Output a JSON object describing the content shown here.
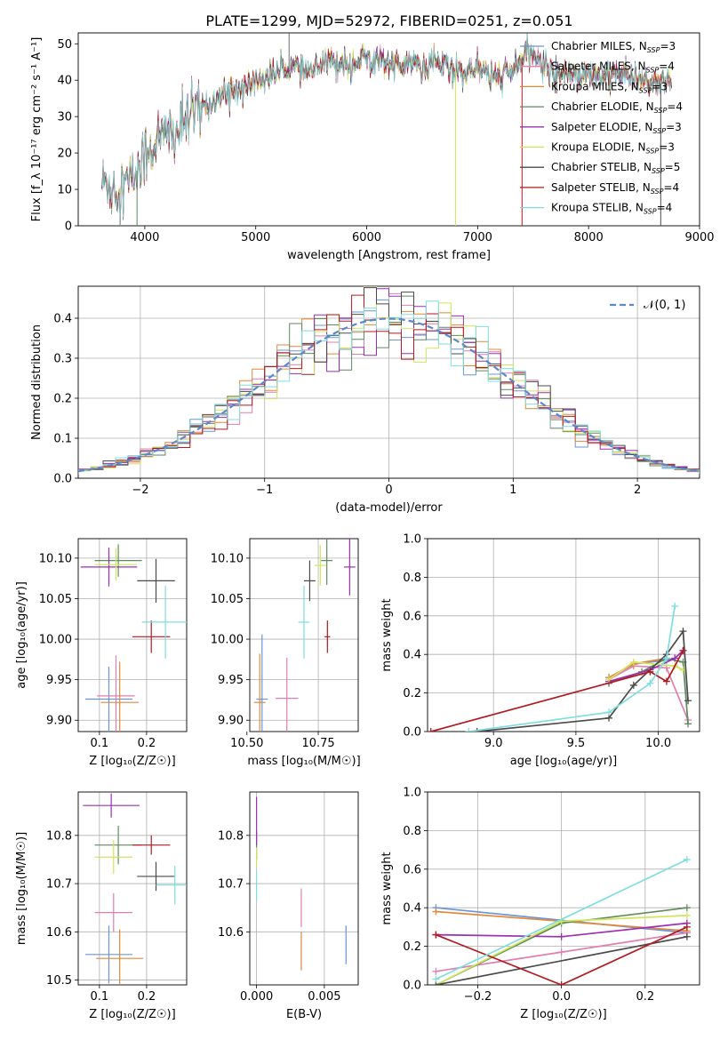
{
  "title": "PLATE=1299, MJD=52972, FIBERID=0251, z=0.051",
  "colors": {
    "chabrier_miles": "#6a95d8",
    "salpeter_miles": "#e07fb0",
    "kroupa_miles": "#e0883a",
    "chabrier_elodie": "#5e8a5e",
    "salpeter_elodie": "#9b2fb0",
    "kroupa_elodie": "#d2e45a",
    "chabrier_stelib": "#4a4a4a",
    "salpeter_stelib": "#b3191f",
    "kroupa_stelib": "#7fdde0",
    "normal": "#5e86cc"
  },
  "chart_data": [
    {
      "id": "spectrum",
      "type": "line",
      "title": "PLATE=1299, MJD=52972, FIBERID=0251, z=0.051",
      "xlabel": "wavelength [Angstrom, rest frame]",
      "ylabel": "Flux [f_λ 10⁻¹⁷ erg cm⁻² s⁻¹ A⁻¹]",
      "xlim": [
        3400,
        9000
      ],
      "ylim": [
        0,
        53
      ],
      "xticks": [
        "4000",
        "5000",
        "6000",
        "7000",
        "8000",
        "9000"
      ],
      "yticks": [
        "0",
        "10",
        "20",
        "30",
        "40",
        "50"
      ],
      "legend_position": "top-right",
      "legend": [
        {
          "label": "Chabrier MILES, N",
          "sub": "SSP",
          "suffix": "=3",
          "color_key": "chabrier_miles"
        },
        {
          "label": "Salpeter MILES, N",
          "sub": "SSP",
          "suffix": "=4",
          "color_key": "salpeter_miles"
        },
        {
          "label": "Kroupa MILES, N",
          "sub": "SSP",
          "suffix": "=3",
          "color_key": "kroupa_miles"
        },
        {
          "label": "Chabrier ELODIE, N",
          "sub": "SSP",
          "suffix": "=4",
          "color_key": "chabrier_elodie"
        },
        {
          "label": "Salpeter ELODIE, N",
          "sub": "SSP",
          "suffix": "=3",
          "color_key": "salpeter_elodie"
        },
        {
          "label": "Kroupa ELODIE, N",
          "sub": "SSP",
          "suffix": "=3",
          "color_key": "kroupa_elodie"
        },
        {
          "label": "Chabrier STELIB, N",
          "sub": "SSP",
          "suffix": "=5",
          "color_key": "chabrier_stelib"
        },
        {
          "label": "Salpeter STELIB, N",
          "sub": "SSP",
          "suffix": "=4",
          "color_key": "salpeter_stelib"
        },
        {
          "label": "Kroupa STELIB, N",
          "sub": "SSP",
          "suffix": "=4",
          "color_key": "kroupa_stelib"
        }
      ],
      "continuum": [
        [
          3600,
          12
        ],
        [
          3700,
          11
        ],
        [
          3800,
          11
        ],
        [
          3900,
          13
        ],
        [
          4000,
          20
        ],
        [
          4100,
          23
        ],
        [
          4200,
          25
        ],
        [
          4300,
          26
        ],
        [
          4400,
          30
        ],
        [
          4500,
          32
        ],
        [
          4600,
          34
        ],
        [
          4700,
          36
        ],
        [
          4800,
          37
        ],
        [
          4900,
          38
        ],
        [
          5000,
          40
        ],
        [
          5100,
          41
        ],
        [
          5200,
          42
        ],
        [
          5300,
          44
        ],
        [
          5400,
          43
        ],
        [
          5500,
          42
        ],
        [
          5600,
          44
        ],
        [
          5700,
          45
        ],
        [
          5800,
          45
        ],
        [
          5900,
          45
        ],
        [
          6000,
          46
        ],
        [
          6100,
          46
        ],
        [
          6200,
          45
        ],
        [
          6300,
          44
        ],
        [
          6400,
          45
        ],
        [
          6500,
          43
        ],
        [
          6600,
          45
        ],
        [
          6700,
          44
        ],
        [
          6800,
          43
        ],
        [
          6900,
          43
        ],
        [
          7000,
          43
        ],
        [
          7100,
          42
        ],
        [
          7200,
          41
        ],
        [
          7300,
          42
        ],
        [
          7400,
          46
        ],
        [
          7500,
          47
        ],
        [
          7600,
          44
        ],
        [
          7700,
          42
        ],
        [
          7800,
          42
        ],
        [
          7900,
          42
        ],
        [
          8000,
          42
        ],
        [
          8100,
          40
        ],
        [
          8200,
          43
        ],
        [
          8300,
          41
        ],
        [
          8400,
          41
        ],
        [
          8500,
          40
        ],
        [
          8600,
          39
        ],
        [
          8700,
          39
        ],
        [
          8800,
          40
        ]
      ],
      "end_by_series": [
        8700,
        8700,
        8700,
        8750,
        8750,
        8750,
        8750,
        8750,
        8750
      ]
    },
    {
      "id": "residuals",
      "type": "step",
      "xlabel": "(data-model)/error",
      "ylabel": "Normed distribution",
      "xlim": [
        -2.5,
        2.5
      ],
      "ylim": [
        0,
        0.48
      ],
      "xticks": [
        "−2",
        "−1",
        "0",
        "1",
        "2"
      ],
      "yticks": [
        "0.0",
        "0.1",
        "0.2",
        "0.3",
        "0.4"
      ],
      "legend": {
        "label": "𝒩(0, 1)",
        "color_key": "normal",
        "position": "top-right"
      },
      "bin_width": 0.1
    },
    {
      "id": "age_vs_Z",
      "type": "errorbar",
      "xlabel": "Z [log₁₀(Z/Z☉)]",
      "ylabel": "age  [log₁₀(age/yr)]",
      "xlim": [
        0.055,
        0.285
      ],
      "ylim": [
        9.886,
        10.124
      ],
      "xticks": [
        "0.1",
        "0.2"
      ],
      "yticks": [
        "9.90",
        "9.95",
        "10.00",
        "10.05",
        "10.10"
      ],
      "points": [
        {
          "color_key": "chabrier_miles",
          "x": 0.12,
          "xerr": 0.05,
          "y": 9.926,
          "yerr": 0.04
        },
        {
          "color_key": "salpeter_miles",
          "x": 0.135,
          "xerr": 0.04,
          "y": 9.93,
          "yerr": 0.05
        },
        {
          "color_key": "kroupa_miles",
          "x": 0.143,
          "xerr": 0.04,
          "y": 9.922,
          "yerr": 0.05
        },
        {
          "color_key": "chabrier_elodie",
          "x": 0.14,
          "xerr": 0.05,
          "y": 10.097,
          "yerr": 0.02
        },
        {
          "color_key": "salpeter_elodie",
          "x": 0.12,
          "xerr": 0.06,
          "y": 10.089,
          "yerr": 0.024
        },
        {
          "color_key": "kroupa_elodie",
          "x": 0.135,
          "xerr": 0.045,
          "y": 10.092,
          "yerr": 0.02
        },
        {
          "color_key": "chabrier_stelib",
          "x": 0.22,
          "xerr": 0.04,
          "y": 10.072,
          "yerr": 0.027
        },
        {
          "color_key": "salpeter_stelib",
          "x": 0.21,
          "xerr": 0.04,
          "y": 10.003,
          "yerr": 0.02
        },
        {
          "color_key": "kroupa_stelib",
          "x": 0.24,
          "xerr": 0.05,
          "y": 10.021,
          "yerr": 0.045
        }
      ]
    },
    {
      "id": "age_vs_mass",
      "type": "errorbar",
      "xlabel": "mass [log₁₀(M/M☉)]",
      "ylabel": "",
      "xlim": [
        10.51,
        10.89
      ],
      "ylim": [
        9.886,
        10.124
      ],
      "xticks": [
        "10.50",
        "10.75"
      ],
      "yticks": [
        "9.90",
        "9.95",
        "10.00",
        "10.05",
        "10.10"
      ],
      "points": [
        {
          "color_key": "chabrier_miles",
          "x": 10.553,
          "xerr": 0.02,
          "y": 9.926,
          "yerr": 0.08
        },
        {
          "color_key": "salpeter_miles",
          "x": 10.64,
          "xerr": 0.04,
          "y": 9.927,
          "yerr": 0.05
        },
        {
          "color_key": "kroupa_miles",
          "x": 10.545,
          "xerr": 0.02,
          "y": 9.922,
          "yerr": 0.06
        },
        {
          "color_key": "chabrier_elodie",
          "x": 10.78,
          "xerr": 0.02,
          "y": 10.097,
          "yerr": 0.03
        },
        {
          "color_key": "salpeter_elodie",
          "x": 10.86,
          "xerr": 0.02,
          "y": 10.089,
          "yerr": 0.035
        },
        {
          "color_key": "kroupa_elodie",
          "x": 10.757,
          "xerr": 0.02,
          "y": 10.091,
          "yerr": 0.025
        },
        {
          "color_key": "chabrier_stelib",
          "x": 10.72,
          "xerr": 0.02,
          "y": 10.072,
          "yerr": 0.025
        },
        {
          "color_key": "salpeter_stelib",
          "x": 10.782,
          "xerr": 0.01,
          "y": 10.003,
          "yerr": 0.02
        },
        {
          "color_key": "kroupa_stelib",
          "x": 10.7,
          "xerr": 0.02,
          "y": 10.021,
          "yerr": 0.045
        }
      ]
    },
    {
      "id": "weight_vs_age",
      "type": "line",
      "xlabel": "age  [log₁₀(age/yr)]",
      "ylabel": "mass weight",
      "xlim": [
        8.6,
        10.25
      ],
      "ylim": [
        0,
        1.0
      ],
      "xticks": [
        "9.0",
        "9.5",
        "10.0"
      ],
      "yticks": [
        "0.0",
        "0.2",
        "0.4",
        "0.6",
        "0.8",
        "1.0"
      ],
      "series": [
        {
          "color_key": "chabrier_miles",
          "x": [
            9.7,
            9.85,
            10.05
          ],
          "y": [
            0.28,
            0.35,
            0.37
          ]
        },
        {
          "color_key": "salpeter_miles",
          "x": [
            9.7,
            9.85,
            10.05,
            10.18
          ],
          "y": [
            0.27,
            0.34,
            0.33,
            0.06
          ]
        },
        {
          "color_key": "kroupa_miles",
          "x": [
            9.7,
            9.85,
            10.05
          ],
          "y": [
            0.28,
            0.35,
            0.38
          ]
        },
        {
          "color_key": "chabrier_elodie",
          "x": [
            9.7,
            9.9,
            10.05,
            10.15,
            10.18
          ],
          "y": [
            0.25,
            0.31,
            0.38,
            0.36,
            0.04
          ]
        },
        {
          "color_key": "salpeter_elodie",
          "x": [
            9.7,
            9.95,
            10.1,
            10.15
          ],
          "y": [
            0.26,
            0.32,
            0.38,
            0.42
          ]
        },
        {
          "color_key": "kroupa_elodie",
          "x": [
            9.7,
            9.85,
            10.1,
            10.15
          ],
          "y": [
            0.27,
            0.36,
            0.34,
            0.32
          ]
        },
        {
          "color_key": "chabrier_stelib",
          "x": [
            8.9,
            9.7,
            9.85,
            10.05,
            10.15,
            10.18
          ],
          "y": [
            0.0,
            0.07,
            0.24,
            0.4,
            0.52,
            0.16
          ]
        },
        {
          "color_key": "salpeter_stelib",
          "x": [
            8.62,
            9.95,
            10.05,
            10.15
          ],
          "y": [
            0.0,
            0.31,
            0.26,
            0.42
          ]
        },
        {
          "color_key": "kroupa_stelib",
          "x": [
            8.85,
            9.7,
            9.95,
            10.05,
            10.1
          ],
          "y": [
            0.0,
            0.1,
            0.25,
            0.38,
            0.65
          ]
        }
      ]
    },
    {
      "id": "mass_vs_Z",
      "type": "errorbar",
      "xlabel": "Z [log₁₀(Z/Z☉)]",
      "ylabel": "mass [log₁₀(M/M☉)]",
      "xlim": [
        0.055,
        0.285
      ],
      "ylim": [
        10.49,
        10.89
      ],
      "xticks": [
        "0.1",
        "0.2"
      ],
      "yticks": [
        "10.5",
        "10.6",
        "10.7",
        "10.8"
      ],
      "points": [
        {
          "color_key": "chabrier_miles",
          "x": 0.12,
          "xerr": 0.05,
          "y": 10.553,
          "yerr": 0.06
        },
        {
          "color_key": "salpeter_miles",
          "x": 0.13,
          "xerr": 0.04,
          "y": 10.64,
          "yerr": 0.04
        },
        {
          "color_key": "kroupa_miles",
          "x": 0.143,
          "xerr": 0.05,
          "y": 10.545,
          "yerr": 0.06
        },
        {
          "color_key": "chabrier_elodie",
          "x": 0.14,
          "xerr": 0.05,
          "y": 10.78,
          "yerr": 0.04
        },
        {
          "color_key": "salpeter_elodie",
          "x": 0.125,
          "xerr": 0.06,
          "y": 10.862,
          "yerr": 0.025
        },
        {
          "color_key": "kroupa_elodie",
          "x": 0.13,
          "xerr": 0.04,
          "y": 10.755,
          "yerr": 0.035
        },
        {
          "color_key": "chabrier_stelib",
          "x": 0.22,
          "xerr": 0.04,
          "y": 10.715,
          "yerr": 0.03
        },
        {
          "color_key": "salpeter_stelib",
          "x": 0.21,
          "xerr": 0.04,
          "y": 10.78,
          "yerr": 0.02
        },
        {
          "color_key": "kroupa_stelib",
          "x": 0.26,
          "xerr": 0.04,
          "y": 10.697,
          "yerr": 0.04
        }
      ]
    },
    {
      "id": "mass_vs_ebv",
      "type": "errorbar",
      "xlabel": "E(B-V)",
      "ylabel": "",
      "xlim": [
        -0.0005,
        0.0075
      ],
      "ylim": [
        10.49,
        10.89
      ],
      "xticks": [
        "0.000",
        "0.005"
      ],
      "yticks": [
        "10.6",
        "10.7",
        "10.8"
      ],
      "points": [
        {
          "color_key": "chabrier_miles",
          "x": 0.0066,
          "xerr": 0,
          "y": 10.573,
          "yerr": 0.04
        },
        {
          "color_key": "salpeter_miles",
          "x": 0.0033,
          "xerr": 0,
          "y": 10.65,
          "yerr": 0.04
        },
        {
          "color_key": "kroupa_miles",
          "x": 0.0033,
          "xerr": 0,
          "y": 10.56,
          "yerr": 0.04
        },
        {
          "color_key": "chabrier_elodie",
          "x": 0.0,
          "xerr": 0,
          "y": 10.78,
          "yerr": 0.03
        },
        {
          "color_key": "salpeter_elodie",
          "x": 0.0,
          "xerr": 0,
          "y": 10.83,
          "yerr": 0.05
        },
        {
          "color_key": "kroupa_elodie",
          "x": 0.0,
          "xerr": 0,
          "y": 10.755,
          "yerr": 0.02
        },
        {
          "color_key": "kroupa_stelib",
          "x": 0.0,
          "xerr": 0,
          "y": 10.695,
          "yerr": 0.03
        }
      ]
    },
    {
      "id": "weight_vs_Z",
      "type": "line",
      "xlabel": "Z [log₁₀(Z/Z☉)]",
      "ylabel": "mass weight",
      "xlim": [
        -0.32,
        0.33
      ],
      "ylim": [
        0,
        1.0
      ],
      "xticks": [
        "−0.2",
        "0.0",
        "0.2"
      ],
      "yticks": [
        "0.0",
        "0.2",
        "0.4",
        "0.6",
        "0.8",
        "1.0"
      ],
      "series": [
        {
          "color_key": "chabrier_miles",
          "x": [
            -0.3,
            0.3
          ],
          "y": [
            0.4,
            0.27
          ]
        },
        {
          "color_key": "salpeter_miles",
          "x": [
            -0.3,
            0.0,
            0.3
          ],
          "y": [
            0.07,
            0.17,
            0.27
          ]
        },
        {
          "color_key": "kroupa_miles",
          "x": [
            -0.3,
            0.3
          ],
          "y": [
            0.38,
            0.28
          ]
        },
        {
          "color_key": "chabrier_elodie",
          "x": [
            -0.3,
            0.0,
            0.3
          ],
          "y": [
            0.0,
            0.32,
            0.4
          ]
        },
        {
          "color_key": "salpeter_elodie",
          "x": [
            -0.3,
            0.0,
            0.3
          ],
          "y": [
            0.26,
            0.25,
            0.32
          ]
        },
        {
          "color_key": "kroupa_elodie",
          "x": [
            -0.3,
            0.0,
            0.3
          ],
          "y": [
            0.0,
            0.33,
            0.36
          ]
        },
        {
          "color_key": "chabrier_stelib",
          "x": [
            -0.3,
            0.3
          ],
          "y": [
            0.0,
            0.25
          ]
        },
        {
          "color_key": "salpeter_stelib",
          "x": [
            -0.3,
            0.0,
            0.3
          ],
          "y": [
            0.26,
            0.0,
            0.3
          ]
        },
        {
          "color_key": "kroupa_stelib",
          "x": [
            -0.3,
            0.3
          ],
          "y": [
            0.03,
            0.65
          ]
        }
      ]
    }
  ]
}
